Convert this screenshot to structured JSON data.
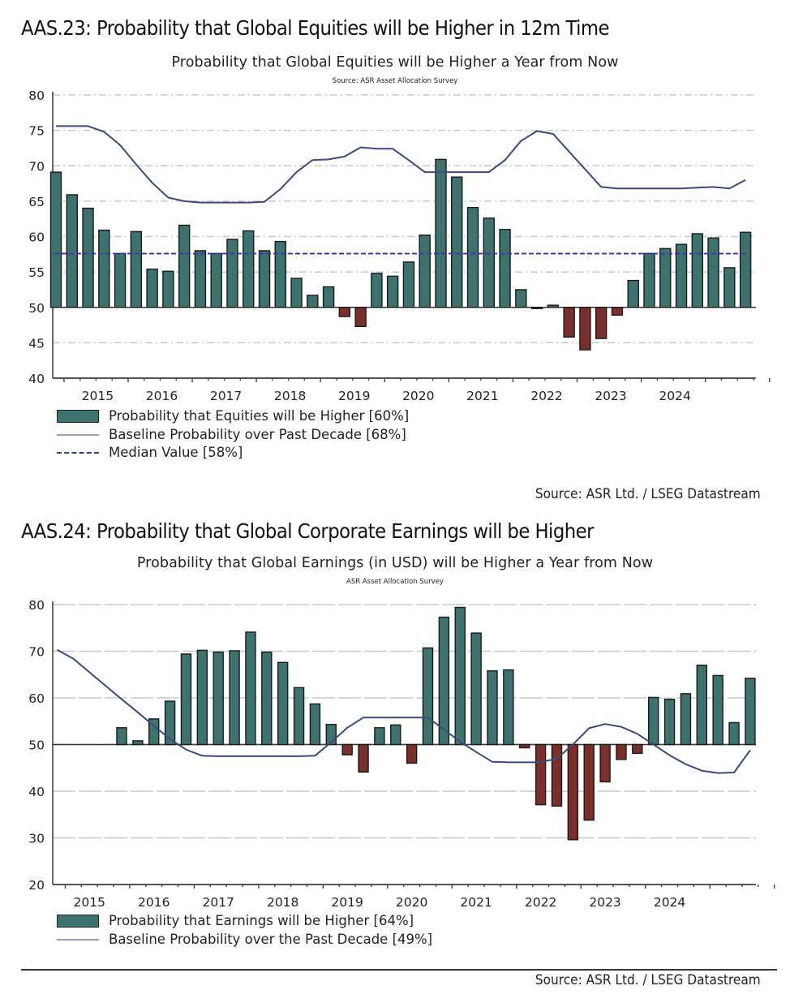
{
  "colors": {
    "bar_positive": "#3d736f",
    "bar_negative": "#7b2f2a",
    "bar_outline": "#1a1a1a",
    "baseline_line": "#3b4a7a",
    "median_line": "#3a3aa0",
    "grid": "#c8c8c8"
  },
  "chart_data": [
    {
      "type": "bar",
      "figure_title": "AAS.23: Probability that Global Equities will be Higher in 12m Time",
      "title": "Probability that Global Equities will be Higher a Year from Now",
      "subtitle": "Source: ASR Asset Allocation Survey",
      "xlabel": "",
      "ylabel": "",
      "ylim": [
        40,
        80
      ],
      "yticks": [
        40,
        45,
        50,
        55,
        60,
        65,
        70,
        75,
        80
      ],
      "bar_base": 50,
      "grid": true,
      "x_tick_labels": [
        "2015",
        "2016",
        "2017",
        "2018",
        "2019",
        "2020",
        "2021",
        "2022",
        "2023",
        "2024"
      ],
      "periods_per_year": 4,
      "series": [
        {
          "name": "Probability that Equities will be Higher [60%]",
          "kind": "bar",
          "values": [
            69.1,
            65.9,
            64.0,
            60.9,
            57.6,
            60.7,
            55.4,
            55.1,
            61.6,
            58.0,
            57.6,
            59.6,
            60.8,
            58.0,
            59.3,
            54.1,
            51.7,
            52.9,
            48.7,
            47.3,
            54.8,
            54.4,
            56.4,
            60.2,
            70.9,
            68.4,
            64.1,
            62.6,
            61.0,
            52.5,
            49.9,
            50.3,
            45.8,
            44.0,
            45.6,
            48.9,
            53.8,
            57.6,
            58.3,
            58.9,
            60.4,
            59.8,
            55.6,
            60.6
          ]
        },
        {
          "name": "Baseline Probability over Past Decade [68%]",
          "kind": "line",
          "values": [
            75.6,
            75.6,
            75.6,
            74.8,
            72.9,
            70.2,
            67.6,
            65.5,
            65.0,
            64.8,
            64.8,
            64.8,
            64.8,
            64.9,
            66.7,
            69.1,
            70.8,
            70.9,
            71.3,
            72.6,
            72.4,
            72.4,
            70.8,
            69.1,
            69.1,
            69.1,
            69.1,
            69.1,
            70.8,
            73.5,
            74.9,
            74.5,
            72.0,
            69.5,
            67.0,
            66.8,
            66.8,
            66.8,
            66.8,
            66.8,
            66.9,
            67.0,
            66.8,
            68.0
          ]
        },
        {
          "name": "Median Value [58%]",
          "kind": "hline",
          "value": 57.6
        }
      ],
      "source": "Source: ASR Ltd. / LSEG Datastream"
    },
    {
      "type": "bar",
      "figure_title": "AAS.24: Probability that Global Corporate Earnings will be Higher",
      "title": "Probability that Global Earnings (in USD) will be Higher a Year from Now",
      "subtitle": "ASR Asset Allocation Survey",
      "xlabel": "",
      "ylabel": "",
      "ylim": [
        20,
        80
      ],
      "yticks": [
        20,
        30,
        40,
        50,
        60,
        70,
        80
      ],
      "bar_base": 50,
      "grid": true,
      "x_tick_labels": [
        "2015",
        "2016",
        "2017",
        "2018",
        "2019",
        "2020",
        "2021",
        "2022",
        "2023",
        "2024"
      ],
      "periods_per_year": 4,
      "series": [
        {
          "name": "Probability that Earnings will be Higher [64%]",
          "kind": "bar",
          "values": [
            null,
            null,
            null,
            null,
            53.6,
            50.8,
            55.5,
            59.3,
            69.4,
            70.2,
            69.8,
            70.1,
            74.1,
            69.8,
            67.6,
            62.2,
            58.7,
            54.3,
            47.8,
            44.1,
            53.6,
            54.2,
            46.0,
            70.7,
            77.3,
            79.4,
            73.9,
            65.8,
            66.0,
            49.3,
            37.1,
            36.8,
            29.6,
            33.8,
            42.0,
            46.8,
            48.1,
            60.1,
            59.7,
            60.9,
            67.0,
            64.8,
            54.7,
            64.2
          ]
        },
        {
          "name": "Baseline Probability over the Past Decade [49%]",
          "kind": "line",
          "values": [
            70.3,
            68.4,
            65.5,
            62.6,
            59.7,
            56.9,
            54.0,
            51.2,
            48.9,
            47.6,
            47.5,
            47.5,
            47.5,
            47.5,
            47.5,
            47.5,
            47.6,
            50.5,
            53.6,
            55.8,
            55.8,
            55.8,
            55.8,
            55.8,
            53.2,
            50.6,
            48.4,
            46.3,
            46.2,
            46.2,
            46.2,
            47.0,
            50.0,
            53.5,
            54.4,
            53.8,
            52.3,
            50.0,
            47.7,
            45.8,
            44.4,
            43.9,
            44.0,
            48.8
          ]
        }
      ],
      "source": "Source: ASR Ltd. / LSEG Datastream"
    }
  ]
}
